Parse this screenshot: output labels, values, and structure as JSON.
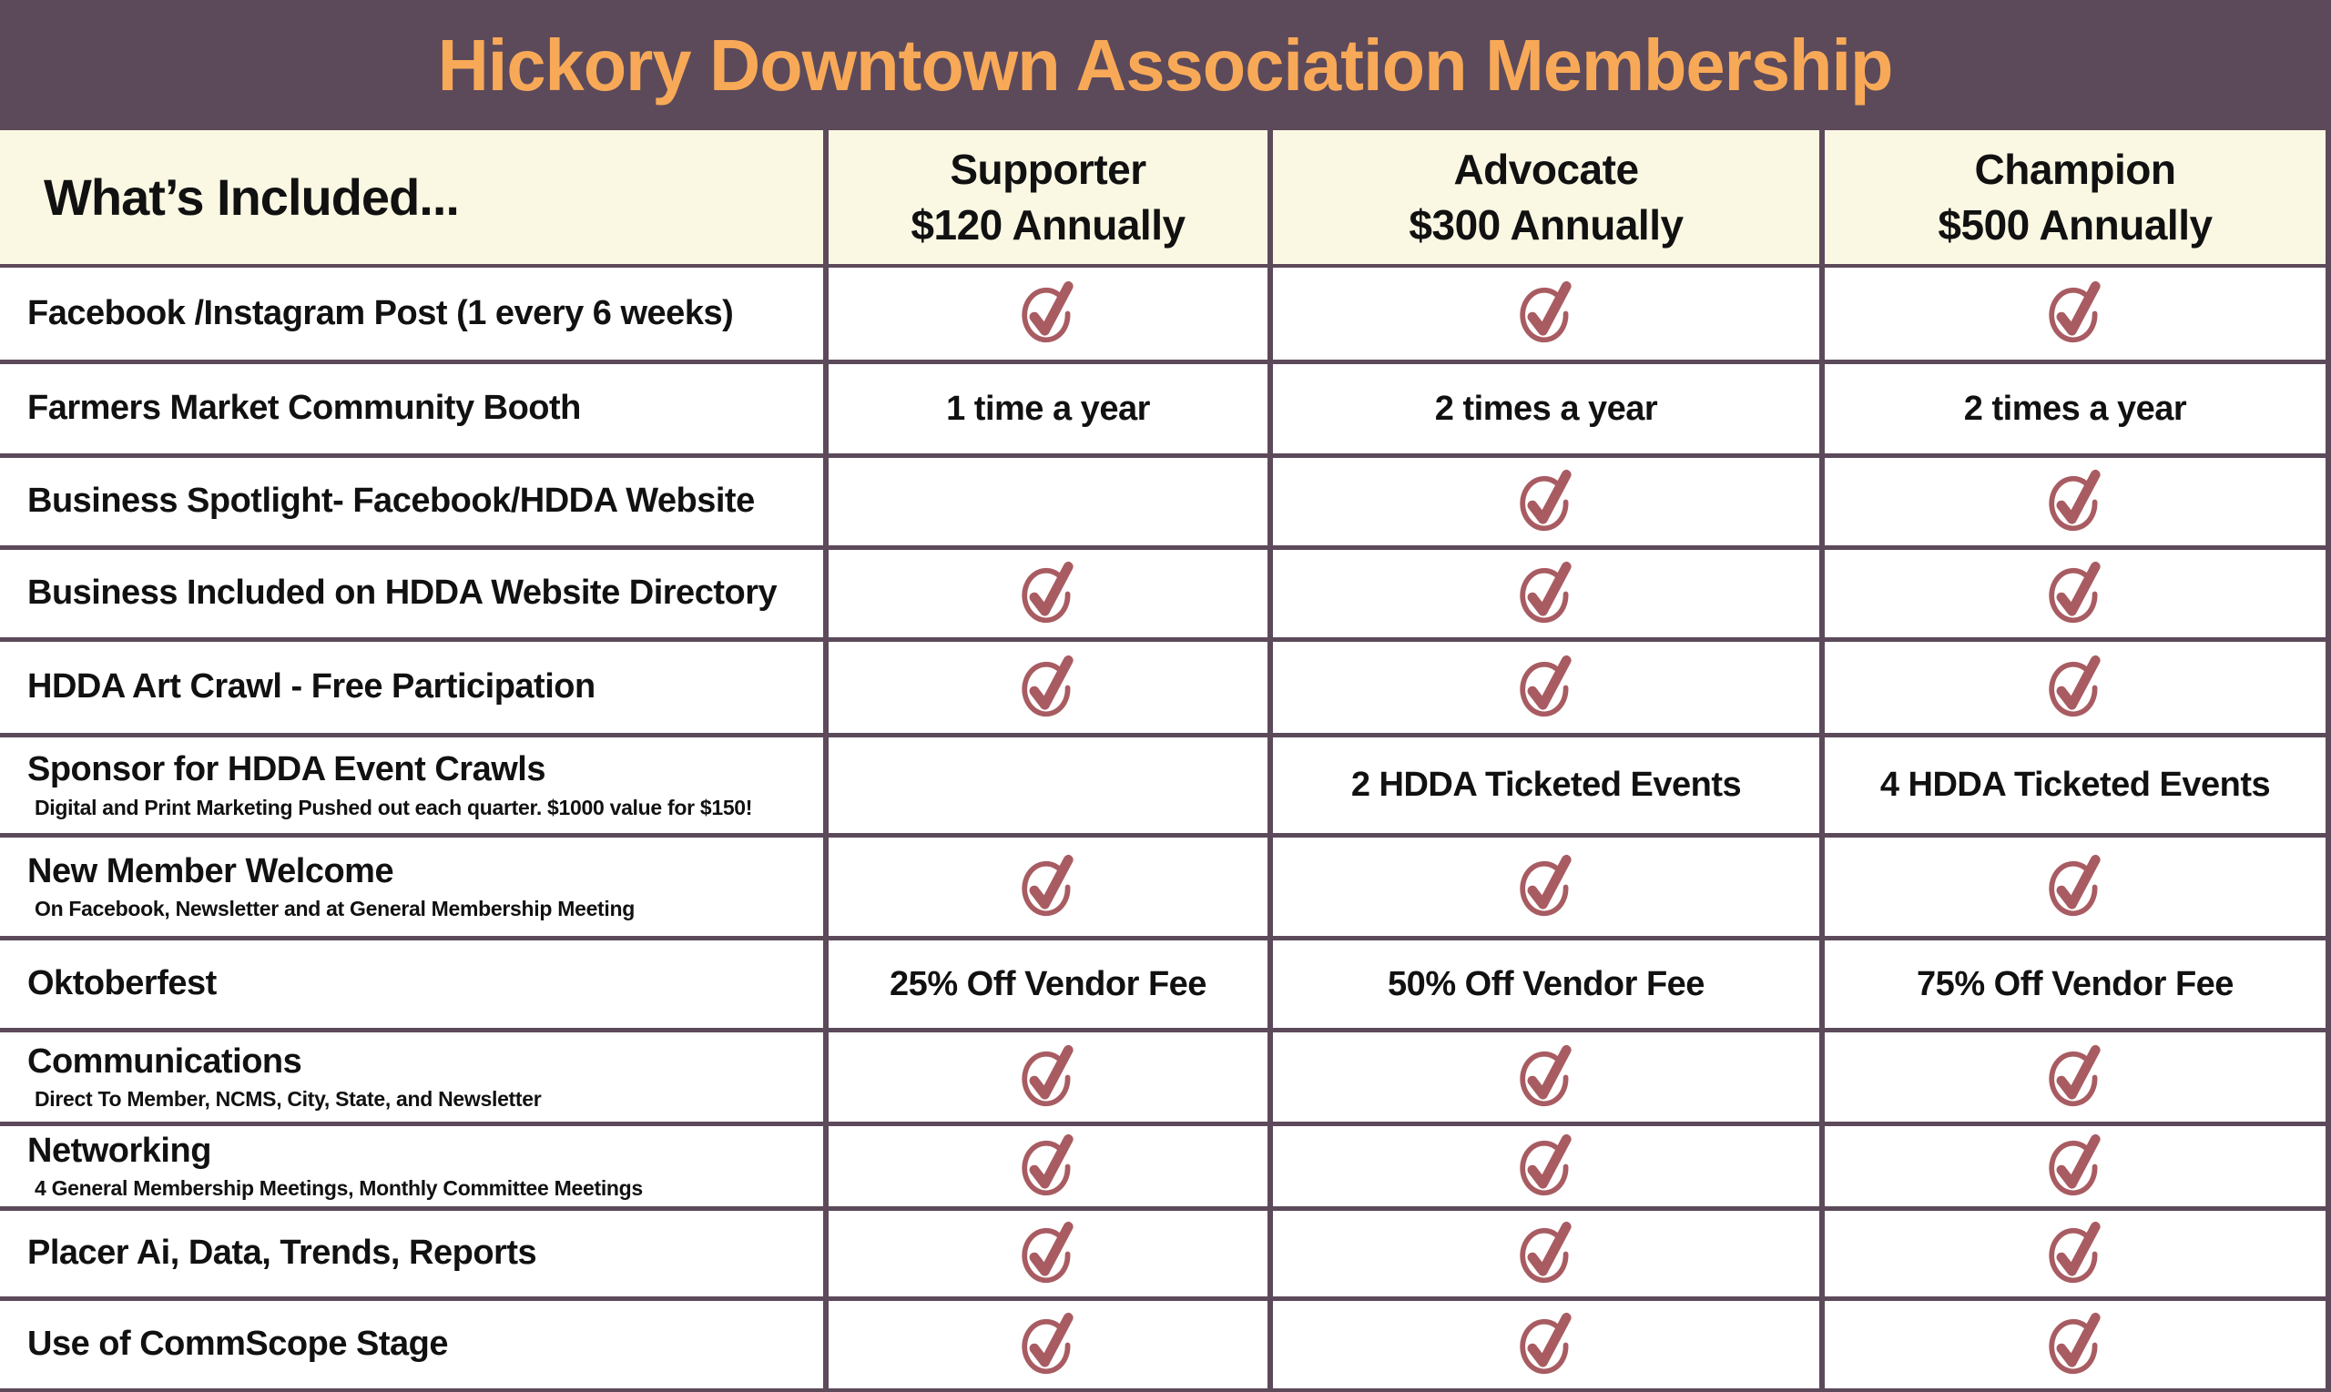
{
  "title": "Hickory Downtown Association Membership",
  "colors": {
    "title_bar_bg": "#5c4a5a",
    "title_text": "#f8a958",
    "header_band_bg": "#faf8e3",
    "checkmark": "#a85c62",
    "grid_border": "#5c4a5a",
    "body_text": "#111111"
  },
  "table": {
    "included_header": "What’s Included...",
    "plans": [
      {
        "name": "Supporter",
        "price": "$120 Annually"
      },
      {
        "name": "Advocate",
        "price": "$300 Annually"
      },
      {
        "name": "Champion",
        "price": "$500 Annually"
      }
    ],
    "check_symbol_meaning": "included",
    "rows": [
      {
        "label": "Facebook /Instagram Post (1 every 6 weeks)",
        "sub": "",
        "cells": [
          "check",
          "check",
          "check"
        ]
      },
      {
        "label": "Farmers Market Community Booth",
        "sub": "",
        "cells": [
          "1 time a year",
          "2 times a year",
          "2 times a year"
        ]
      },
      {
        "label": "Business Spotlight- Facebook/HDDA Website",
        "sub": "",
        "cells": [
          "",
          "check",
          "check"
        ]
      },
      {
        "label": "Business Included on HDDA Website Directory",
        "sub": "",
        "cells": [
          "check",
          "check",
          "check"
        ]
      },
      {
        "label": "HDDA Art Crawl - Free Participation",
        "sub": "",
        "cells": [
          "check",
          "check",
          "check"
        ]
      },
      {
        "label": "Sponsor for HDDA Event Crawls",
        "sub": "Digital and Print Marketing Pushed out each quarter. $1000 value for $150!",
        "cells": [
          "",
          "2 HDDA Ticketed Events",
          "4  HDDA Ticketed Events"
        ]
      },
      {
        "label": "New Member Welcome",
        "sub": "On Facebook, Newsletter and at General Membership Meeting",
        "cells": [
          "check",
          "check",
          "check"
        ]
      },
      {
        "label": "Oktoberfest",
        "sub": "",
        "cells": [
          "25% Off Vendor Fee",
          "50% Off Vendor Fee",
          "75% Off Vendor Fee"
        ]
      },
      {
        "label": "Communications",
        "sub": "Direct To Member, NCMS, City, State, and Newsletter",
        "cells": [
          "check",
          "check",
          "check"
        ]
      },
      {
        "label": "Networking",
        "sub": "4 General Membership Meetings, Monthly Committee Meetings",
        "cells": [
          "check",
          "check",
          "check"
        ]
      },
      {
        "label": "Placer Ai, Data, Trends, Reports",
        "sub": "",
        "cells": [
          "check",
          "check",
          "check"
        ]
      },
      {
        "label": "Use of CommScope Stage",
        "sub": "",
        "cells": [
          "check",
          "check",
          "check"
        ]
      }
    ]
  }
}
